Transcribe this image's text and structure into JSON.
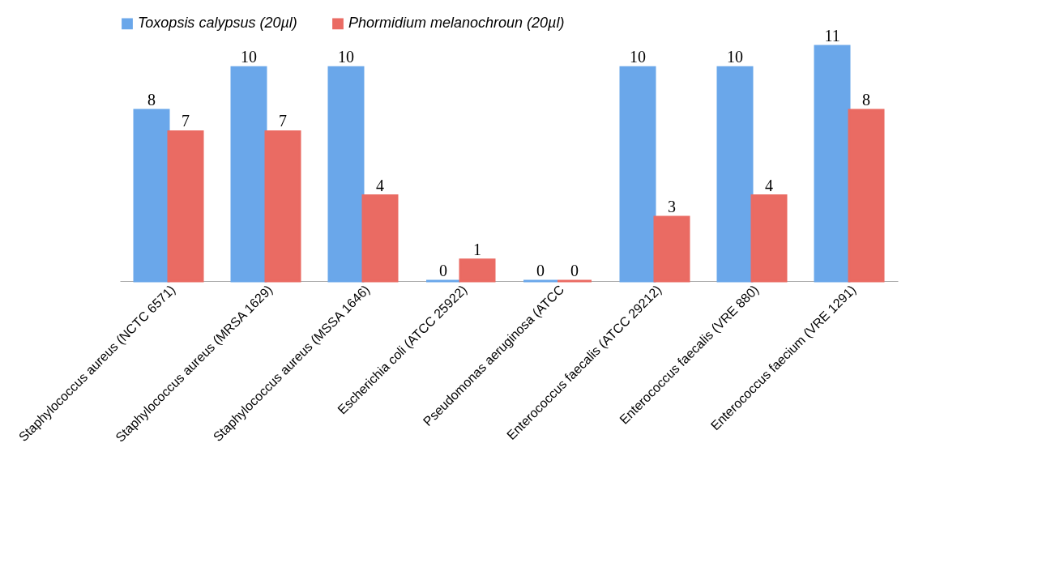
{
  "chart_data": {
    "type": "bar",
    "categories": [
      "Staphylococcus aureus (NCTC 6571)",
      "Staphylococcus aureus (MRSA 1629)",
      "Staphylococcus aureus (MSSA 1646)",
      "Escherichia coli (ATCC 25922)",
      "Pseudomonas aeruginosa (ATCC",
      "Enterococcus faecalis (ATCC 29212)",
      "Enterococcus faecalis (VRE 880)",
      "Enterococcus faecium (VRE 1291)"
    ],
    "series": [
      {
        "name": "Toxopsis calypsus (20µl)",
        "color": "#6aa7ea",
        "values": [
          8,
          10,
          10,
          0,
          0,
          10,
          10,
          11
        ]
      },
      {
        "name": "Phormidium melanochroun (20µl)",
        "color": "#ea6b63",
        "values": [
          7,
          7,
          4,
          1,
          0,
          3,
          4,
          8
        ]
      }
    ],
    "data_labels": true,
    "legend": "top",
    "grid": false
  }
}
